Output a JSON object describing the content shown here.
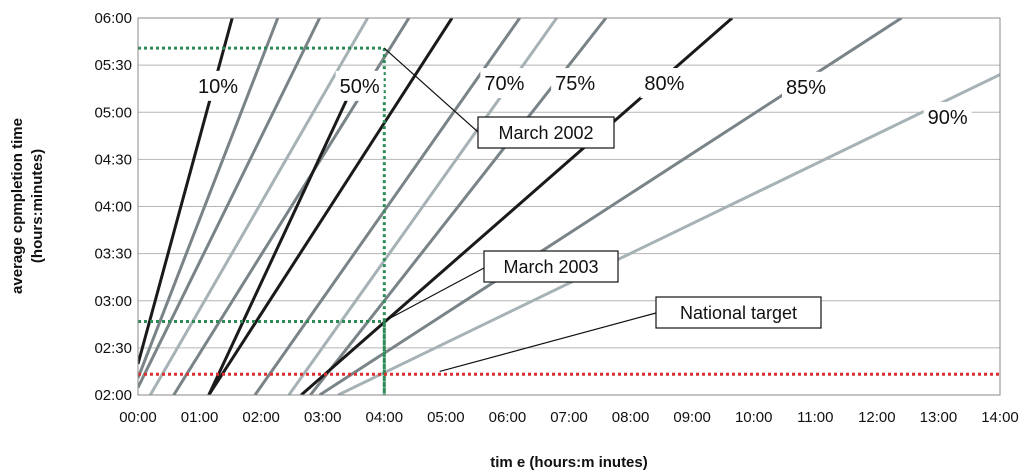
{
  "chart_data": {
    "type": "line",
    "xlabel": "tim e (hours:m inutes)",
    "ylabel_line1": "average cpmpletion time",
    "ylabel_line2": "(hours:minutes)",
    "x_ticks": [
      "00:00",
      "01:00",
      "02:00",
      "03:00",
      "04:00",
      "05:00",
      "06:00",
      "07:00",
      "08:00",
      "09:00",
      "10:00",
      "11:00",
      "12:00",
      "13:00",
      "14:00"
    ],
    "y_ticks": [
      "02:00",
      "02:30",
      "03:00",
      "03:30",
      "04:00",
      "04:30",
      "05:00",
      "05:30",
      "06:00"
    ],
    "xlim_hours": [
      0,
      14
    ],
    "ylim_hours": [
      2,
      6
    ],
    "grid": "horizontal",
    "legend": "none",
    "series": [
      {
        "name": "10%",
        "color": "#1a1a1a",
        "points": [
          [
            0.0,
            2.33
          ],
          [
            1.53,
            6.0
          ]
        ]
      },
      {
        "name": "",
        "color": "#7a8488",
        "points": [
          [
            0.0,
            2.18
          ],
          [
            2.27,
            6.0
          ]
        ]
      },
      {
        "name": "",
        "color": "#7a8488",
        "points": [
          [
            0.0,
            2.08
          ],
          [
            2.95,
            6.0
          ]
        ]
      },
      {
        "name": "",
        "color": "#a6b2b6",
        "points": [
          [
            0.2,
            2.0
          ],
          [
            3.73,
            6.0
          ]
        ]
      },
      {
        "name": "",
        "color": "#7a8488",
        "points": [
          [
            0.58,
            2.0
          ],
          [
            4.4,
            6.0
          ]
        ]
      },
      {
        "name": "",
        "color": "#1a1a1a",
        "points": [
          [
            1.15,
            2.0
          ],
          [
            3.53,
            5.33
          ]
        ]
      },
      {
        "name": "50%",
        "color": "#1a1a1a",
        "points": [
          [
            1.15,
            2.0
          ],
          [
            5.1,
            6.0
          ]
        ]
      },
      {
        "name": "",
        "color": "#7a8488",
        "points": [
          [
            1.9,
            2.0
          ],
          [
            6.2,
            6.0
          ]
        ]
      },
      {
        "name": "70%",
        "color": "#a6b2b6",
        "points": [
          [
            2.45,
            2.0
          ],
          [
            6.8,
            6.0
          ]
        ]
      },
      {
        "name": "75%",
        "color": "#7a8488",
        "points": [
          [
            2.8,
            2.0
          ],
          [
            7.6,
            6.0
          ]
        ]
      },
      {
        "name": "80%",
        "color": "#1a1a1a",
        "points": [
          [
            2.65,
            2.0
          ],
          [
            9.65,
            6.0
          ]
        ]
      },
      {
        "name": "85%",
        "color": "#7a8488",
        "points": [
          [
            2.95,
            2.0
          ],
          [
            12.4,
            6.0
          ]
        ]
      },
      {
        "name": "90%",
        "color": "#a6b2b6",
        "points": [
          [
            3.25,
            2.0
          ],
          [
            14.0,
            5.4
          ]
        ]
      }
    ],
    "reference_lines": [
      {
        "label": "March 2002",
        "kind": "crosshair",
        "color": "#2e8b57",
        "x": 4.0,
        "y": 5.68
      },
      {
        "label": "March 2003",
        "kind": "crosshair",
        "color": "#2e8b57",
        "x": 4.0,
        "y": 2.78
      },
      {
        "label": "National target",
        "kind": "horizontal",
        "color": "#d93030",
        "y": 2.22
      }
    ],
    "annotations": [
      {
        "text": "March 2002",
        "target": [
          4.0,
          5.68
        ]
      },
      {
        "text": "March 2003",
        "target": [
          4.05,
          2.8
        ]
      },
      {
        "text": "National target",
        "target": [
          4.9,
          2.25
        ]
      }
    ]
  }
}
